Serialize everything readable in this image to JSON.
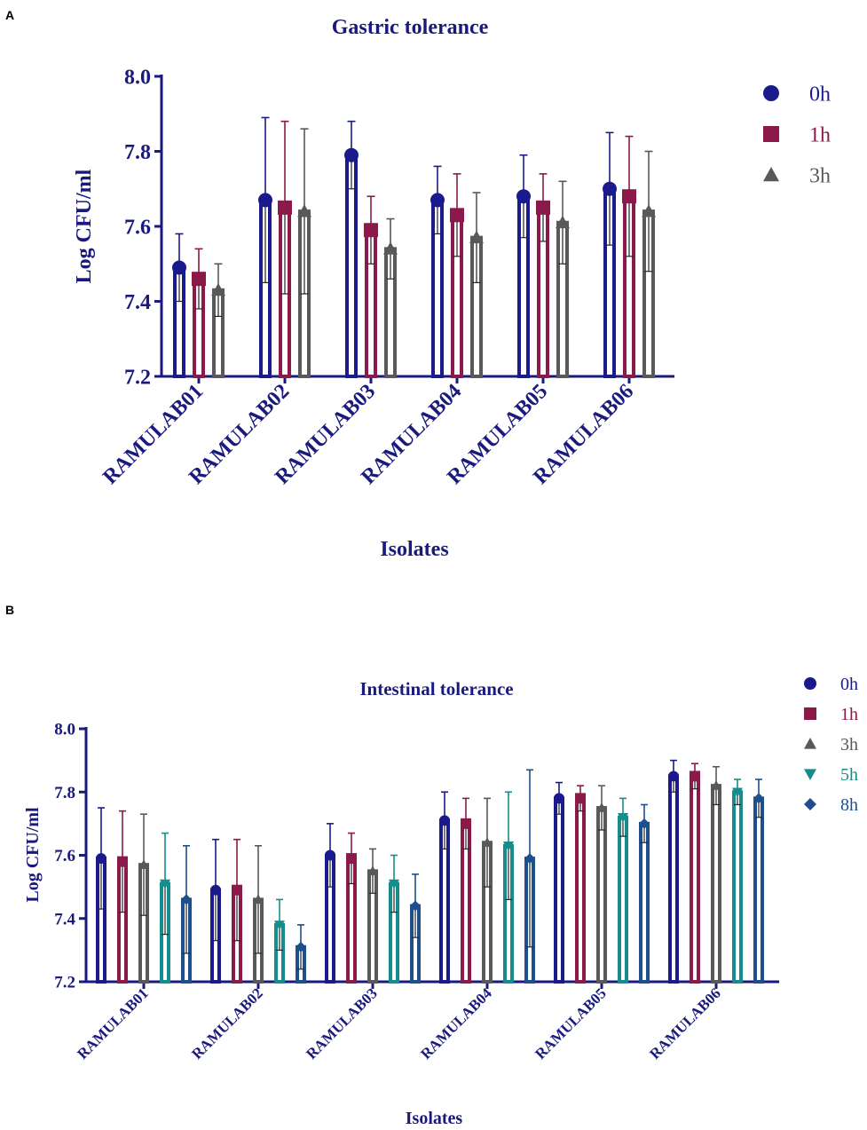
{
  "chart_data": [
    {
      "panel": "A",
      "type": "bar",
      "title": "Gastric tolerance",
      "xlabel": "Isolates",
      "ylabel": "Log CFU/ml",
      "ylim": [
        7.2,
        8.0
      ],
      "yticks": [
        "7.2",
        "7.4",
        "7.6",
        "7.8",
        "8.0"
      ],
      "categories": [
        "RAMULAB01",
        "RAMULAB02",
        "RAMULAB03",
        "RAMULAB04",
        "RAMULAB05",
        "RAMULAB06"
      ],
      "legend_position": "top-right",
      "series": [
        {
          "name": "0h",
          "color": "#1a1a8c",
          "marker": "circle",
          "values": [
            7.49,
            7.67,
            7.79,
            7.67,
            7.68,
            7.7
          ],
          "errors": [
            0.09,
            0.22,
            0.09,
            0.09,
            0.11,
            0.15
          ]
        },
        {
          "name": "1h",
          "color": "#8b1a4a",
          "marker": "square",
          "values": [
            7.46,
            7.65,
            7.59,
            7.63,
            7.65,
            7.68
          ],
          "errors": [
            0.08,
            0.23,
            0.09,
            0.11,
            0.09,
            0.16
          ]
        },
        {
          "name": "3h",
          "color": "#595959",
          "marker": "triangle-up",
          "values": [
            7.43,
            7.64,
            7.54,
            7.57,
            7.61,
            7.64
          ],
          "errors": [
            0.07,
            0.22,
            0.08,
            0.12,
            0.11,
            0.16
          ]
        }
      ]
    },
    {
      "panel": "B",
      "type": "bar",
      "title": "Intestinal tolerance",
      "xlabel": "Isolates",
      "ylabel": "Log CFU/ml",
      "ylim": [
        7.2,
        8.0
      ],
      "yticks": [
        "7.2",
        "7.4",
        "7.6",
        "7.8",
        "8.0"
      ],
      "categories": [
        "RAMULAB01",
        "RAMULAB02",
        "RAMULAB03",
        "RAMULAB04",
        "RAMULAB05",
        "RAMULAB06"
      ],
      "legend_position": "top-right",
      "series": [
        {
          "name": "0h",
          "color": "#1a1a8c",
          "marker": "circle",
          "values": [
            7.59,
            7.49,
            7.6,
            7.71,
            7.78,
            7.85
          ],
          "errors": [
            0.16,
            0.16,
            0.1,
            0.09,
            0.05,
            0.05
          ]
        },
        {
          "name": "1h",
          "color": "#8b1a4a",
          "marker": "square",
          "values": [
            7.58,
            7.49,
            7.59,
            7.7,
            7.78,
            7.85
          ],
          "errors": [
            0.16,
            0.16,
            0.08,
            0.08,
            0.04,
            0.04
          ]
        },
        {
          "name": "3h",
          "color": "#595959",
          "marker": "triangle-up",
          "values": [
            7.57,
            7.46,
            7.55,
            7.64,
            7.75,
            7.82
          ],
          "errors": [
            0.16,
            0.17,
            0.07,
            0.14,
            0.07,
            0.06
          ]
        },
        {
          "name": "5h",
          "color": "#178c8c",
          "marker": "triangle-down",
          "values": [
            7.51,
            7.38,
            7.51,
            7.63,
            7.72,
            7.8
          ],
          "errors": [
            0.16,
            0.08,
            0.09,
            0.17,
            0.06,
            0.04
          ]
        },
        {
          "name": "8h",
          "color": "#1c4f8c",
          "marker": "diamond",
          "values": [
            7.46,
            7.31,
            7.44,
            7.59,
            7.7,
            7.78
          ],
          "errors": [
            0.17,
            0.07,
            0.1,
            0.28,
            0.06,
            0.06
          ]
        }
      ]
    }
  ]
}
